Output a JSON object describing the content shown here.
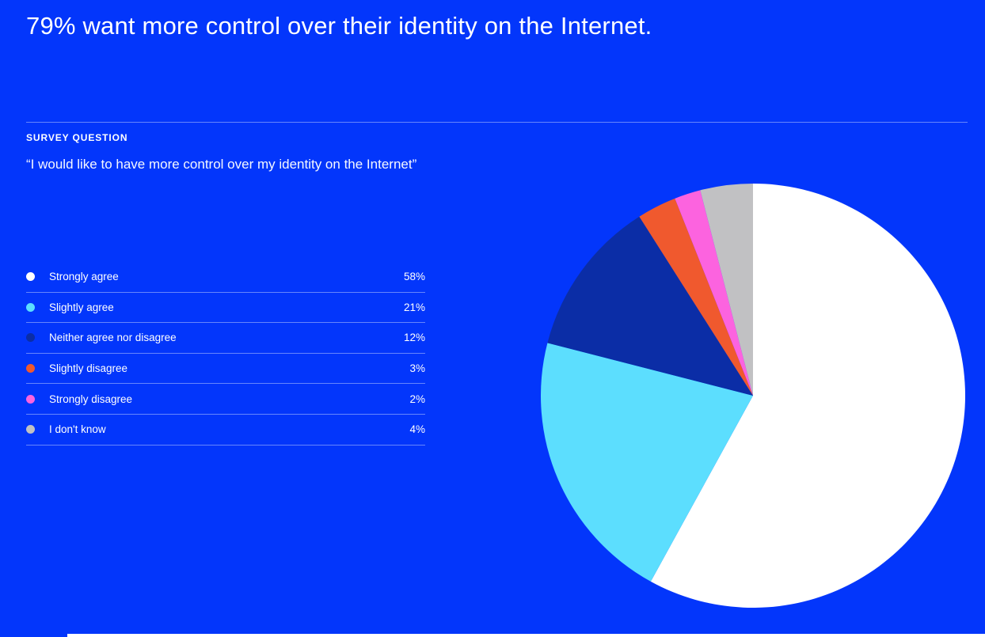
{
  "theme": {
    "background": "#0336FB",
    "text": "#FFFFFF",
    "divider": "rgba(255,255,255,0.4)"
  },
  "header": {
    "title": "79% want more control over their identity on the Internet."
  },
  "survey": {
    "label": "SURVEY QUESTION",
    "question": "“I would like to have more control over my identity on the Internet”"
  },
  "legend": {
    "items": [
      {
        "label": "Strongly agree",
        "value": "58%",
        "color": "#FFFFFF"
      },
      {
        "label": "Slightly agree",
        "value": "21%",
        "color": "#5CDEFE"
      },
      {
        "label": "Neither agree nor disagree",
        "value": "12%",
        "color": "#0B2DA6"
      },
      {
        "label": "Slightly disagree",
        "value": "3%",
        "color": "#F0592E"
      },
      {
        "label": "Strongly disagree",
        "value": "2%",
        "color": "#FC63DF"
      },
      {
        "label": "I don't know",
        "value": "4%",
        "color": "#C1C1C3"
      }
    ]
  },
  "chart_data": {
    "type": "pie",
    "title": "79% want more control over their identity on the Internet.",
    "subtitle_label": "SURVEY QUESTION",
    "subtitle": "“I would like to have more control over my identity on the Internet”",
    "categories": [
      "Strongly agree",
      "Slightly agree",
      "Neither agree nor disagree",
      "Slightly disagree",
      "Strongly disagree",
      "I don't know"
    ],
    "values": [
      58,
      21,
      12,
      3,
      2,
      4
    ],
    "unit": "%",
    "colors": [
      "#FFFFFF",
      "#5CDEFE",
      "#0B2DA6",
      "#F0592E",
      "#FC63DF",
      "#C1C1C3"
    ],
    "start_angle_deg": 0,
    "start_position": "12-oclock",
    "direction": "clockwise",
    "legend_position": "left",
    "labels_on_slices": false
  }
}
